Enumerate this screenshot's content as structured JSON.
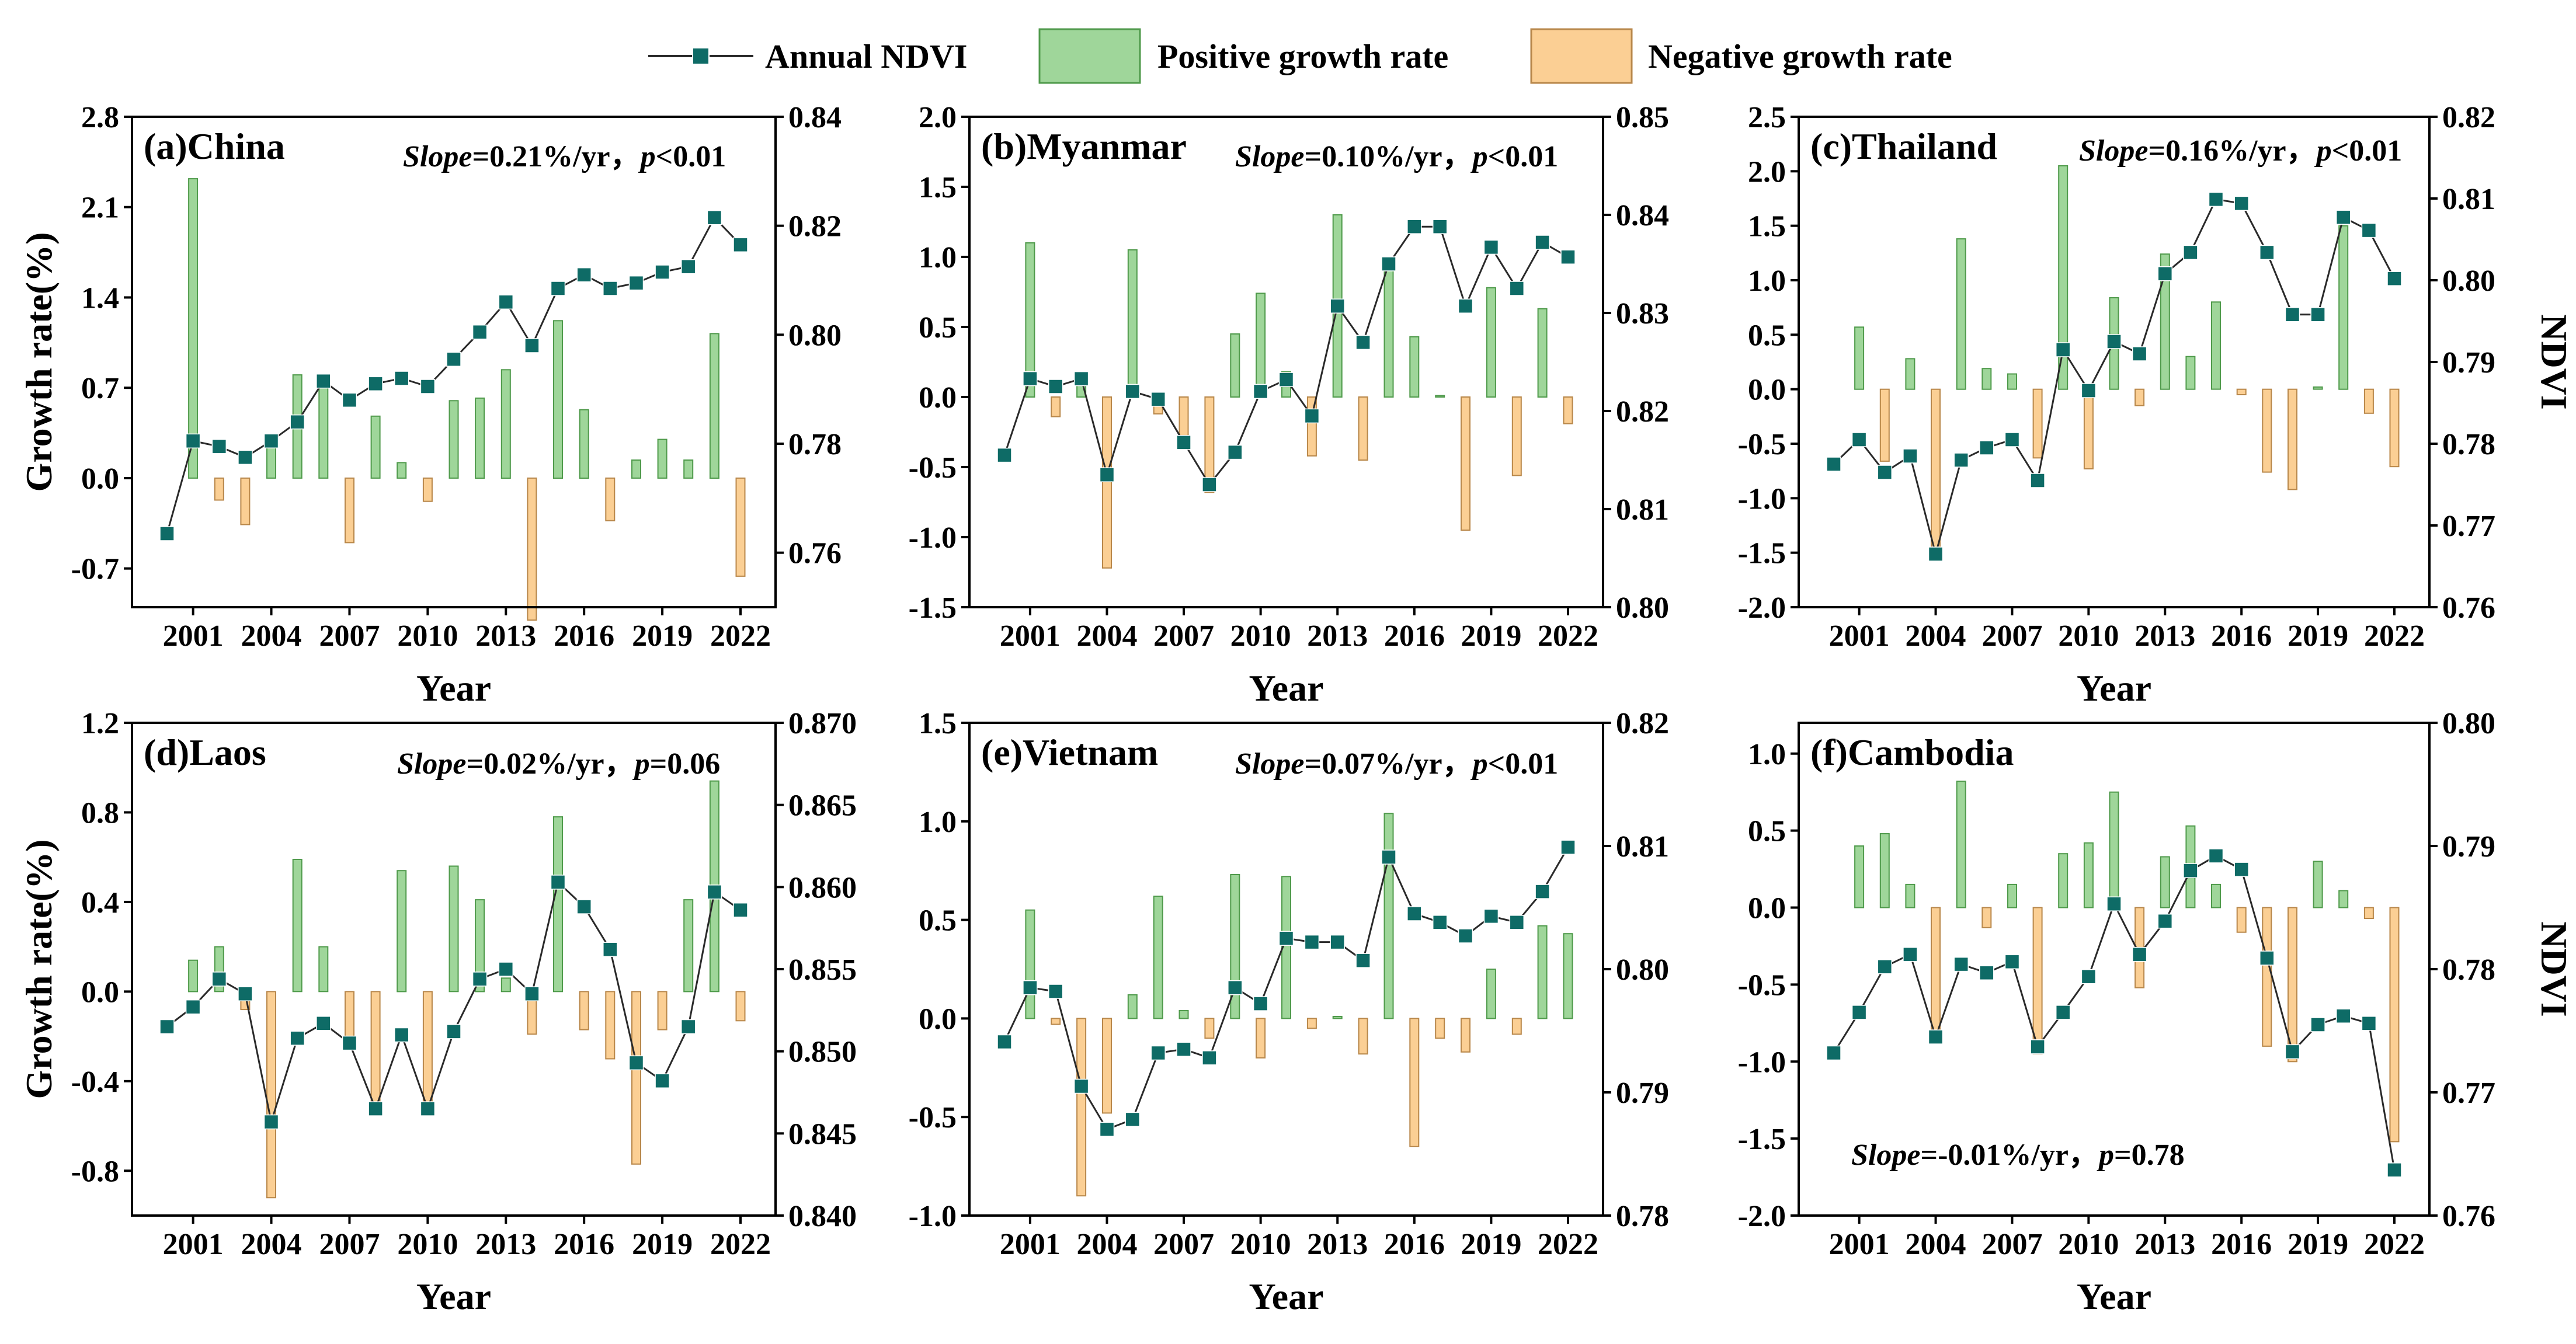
{
  "legend": {
    "ndvi_label": "Annual NDVI",
    "positive_label": "Positive growth rate",
    "negative_label": "Negative growth rate"
  },
  "colors": {
    "positive_fill": "#9fd69a",
    "positive_stroke": "#4f9a4b",
    "negative_fill": "#fbcf94",
    "negative_stroke": "#b8874a",
    "ndvi_marker": "#0e6b66",
    "ndvi_line": "#2a2a2a",
    "axis": "#000000"
  },
  "chart_data": [
    {
      "type": "bar+line",
      "panel": "(a)China",
      "stat_prefix": "Slope",
      "stat_value": "=0.21%/yr，",
      "p_prefix": "p",
      "p_value": "<0.01",
      "xlabel": "Year",
      "ylabel": "Growth rate(%)",
      "y2label": "",
      "x": [
        2000,
        2001,
        2002,
        2003,
        2004,
        2005,
        2006,
        2007,
        2008,
        2009,
        2010,
        2011,
        2012,
        2013,
        2014,
        2015,
        2016,
        2017,
        2018,
        2019,
        2020,
        2021,
        2022
      ],
      "x_ticks": [
        2001,
        2004,
        2007,
        2010,
        2013,
        2016,
        2019,
        2022
      ],
      "ylim": [
        -1.0,
        2.8
      ],
      "yticks": [
        "-0.7",
        "0.0",
        "0.7",
        "1.4",
        "2.1",
        "2.8"
      ],
      "y2lim": [
        0.75,
        0.84
      ],
      "y2ticks": [
        "0.76",
        "0.78",
        "0.80",
        "0.82",
        "0.84"
      ],
      "growth_rate": [
        null,
        2.32,
        -0.17,
        -0.36,
        0.3,
        0.8,
        0.8,
        -0.5,
        0.48,
        0.12,
        -0.18,
        0.6,
        0.62,
        0.84,
        -1.1,
        1.22,
        0.53,
        -0.33,
        0.14,
        0.3,
        0.14,
        1.12,
        -0.76
      ],
      "ndvi": [
        0.7635,
        0.7805,
        0.7795,
        0.7775,
        0.7805,
        0.784,
        0.7915,
        0.788,
        0.791,
        0.792,
        0.7905,
        0.7955,
        0.8005,
        0.806,
        0.798,
        0.8085,
        0.811,
        0.8085,
        0.8095,
        0.8115,
        0.8125,
        0.8215,
        0.8165
      ]
    },
    {
      "type": "bar+line",
      "panel": "(b)Myanmar",
      "stat_prefix": "Slope",
      "stat_value": "=0.10%/yr，",
      "p_prefix": "p",
      "p_value": "<0.01",
      "xlabel": "Year",
      "ylabel": "",
      "y2label": "",
      "x": [
        2000,
        2001,
        2002,
        2003,
        2004,
        2005,
        2006,
        2007,
        2008,
        2009,
        2010,
        2011,
        2012,
        2013,
        2014,
        2015,
        2016,
        2017,
        2018,
        2019,
        2020,
        2021,
        2022
      ],
      "x_ticks": [
        2001,
        2004,
        2007,
        2010,
        2013,
        2016,
        2019,
        2022
      ],
      "ylim": [
        -1.5,
        2.0
      ],
      "yticks": [
        "-1.5",
        "-1.0",
        "-0.5",
        "0.0",
        "0.5",
        "1.0",
        "1.5",
        "2.0"
      ],
      "y2lim": [
        0.8,
        0.85
      ],
      "y2ticks": [
        "0.80",
        "0.81",
        "0.82",
        "0.83",
        "0.84",
        "0.85"
      ],
      "growth_rate": [
        null,
        1.1,
        -0.14,
        0.12,
        -1.22,
        1.05,
        -0.12,
        -0.28,
        -0.68,
        0.45,
        0.74,
        0.18,
        -0.42,
        1.3,
        -0.45,
        0.97,
        0.43,
        0.01,
        -0.95,
        0.78,
        -0.56,
        0.63,
        -0.19
      ],
      "ndvi": [
        0.8155,
        0.8233,
        0.8225,
        0.8233,
        0.8135,
        0.822,
        0.8212,
        0.8168,
        0.8125,
        0.8158,
        0.822,
        0.8232,
        0.8195,
        0.8307,
        0.827,
        0.835,
        0.8388,
        0.8388,
        0.8307,
        0.8367,
        0.8325,
        0.8372,
        0.8357
      ]
    },
    {
      "type": "bar+line",
      "panel": "(c)Thailand",
      "stat_prefix": "Slope",
      "stat_value": "=0.16%/yr，",
      "p_prefix": "p",
      "p_value": "<0.01",
      "xlabel": "Year",
      "ylabel": "",
      "y2label": "NDVI",
      "x": [
        2000,
        2001,
        2002,
        2003,
        2004,
        2005,
        2006,
        2007,
        2008,
        2009,
        2010,
        2011,
        2012,
        2013,
        2014,
        2015,
        2016,
        2017,
        2018,
        2019,
        2020,
        2021,
        2022
      ],
      "x_ticks": [
        2001,
        2004,
        2007,
        2010,
        2013,
        2016,
        2019,
        2022
      ],
      "ylim": [
        -2.0,
        2.5
      ],
      "yticks": [
        "-2.0",
        "-1.5",
        "-1.0",
        "-0.5",
        "0.0",
        "0.5",
        "1.0",
        "1.5",
        "2.0",
        "2.5"
      ],
      "y2lim": [
        0.76,
        0.82
      ],
      "y2ticks": [
        "0.76",
        "0.77",
        "0.78",
        "0.79",
        "0.80",
        "0.81",
        "0.82"
      ],
      "growth_rate": [
        null,
        0.57,
        -0.66,
        0.28,
        -1.52,
        1.38,
        0.19,
        0.14,
        -0.63,
        2.05,
        -0.73,
        0.84,
        -0.15,
        1.24,
        0.3,
        0.8,
        -0.05,
        -0.76,
        -0.92,
        0.02,
        1.5,
        -0.22,
        -0.71
      ],
      "ndvi": [
        0.7775,
        0.7805,
        0.7765,
        0.7785,
        0.7665,
        0.778,
        0.7795,
        0.7805,
        0.7755,
        0.7915,
        0.7865,
        0.7925,
        0.791,
        0.8008,
        0.8034,
        0.8099,
        0.8094,
        0.8034,
        0.7958,
        0.7958,
        0.8077,
        0.8061,
        0.8002
      ]
    },
    {
      "type": "bar+line",
      "panel": "(d)Laos",
      "stat_prefix": "Slope",
      "stat_value": "=0.02%/yr，",
      "p_prefix": "p",
      "p_value": "=0.06",
      "xlabel": "Year",
      "ylabel": "Growth rate(%)",
      "y2label": "",
      "x": [
        2000,
        2001,
        2002,
        2003,
        2004,
        2005,
        2006,
        2007,
        2008,
        2009,
        2010,
        2011,
        2012,
        2013,
        2014,
        2015,
        2016,
        2017,
        2018,
        2019,
        2020,
        2021,
        2022
      ],
      "x_ticks": [
        2001,
        2004,
        2007,
        2010,
        2013,
        2016,
        2019,
        2022
      ],
      "ylim": [
        -1.0,
        1.2
      ],
      "yticks": [
        "-0.8",
        "-0.4",
        "0.0",
        "0.4",
        "0.8",
        "1.2"
      ],
      "y2lim": [
        0.84,
        0.87
      ],
      "y2ticks": [
        "0.840",
        "0.845",
        "0.850",
        "0.855",
        "0.860",
        "0.865",
        "0.870"
      ],
      "growth_rate": [
        null,
        0.14,
        0.2,
        -0.08,
        -0.92,
        0.59,
        0.2,
        -0.22,
        -0.5,
        0.54,
        -0.53,
        0.56,
        0.41,
        0.06,
        -0.19,
        0.78,
        -0.17,
        -0.3,
        -0.77,
        -0.17,
        0.41,
        0.94,
        -0.13
      ],
      "ndvi": [
        0.8515,
        0.8527,
        0.8544,
        0.8535,
        0.8457,
        0.8508,
        0.8517,
        0.8505,
        0.8465,
        0.851,
        0.8465,
        0.8512,
        0.8544,
        0.855,
        0.8535,
        0.8603,
        0.8588,
        0.8562,
        0.8493,
        0.8482,
        0.8515,
        0.8597,
        0.8586
      ]
    },
    {
      "type": "bar+line",
      "panel": "(e)Vietnam",
      "stat_prefix": "Slope",
      "stat_value": "=0.07%/yr，",
      "p_prefix": "p",
      "p_value": "<0.01",
      "xlabel": "Year",
      "ylabel": "",
      "y2label": "",
      "x": [
        2000,
        2001,
        2002,
        2003,
        2004,
        2005,
        2006,
        2007,
        2008,
        2009,
        2010,
        2011,
        2012,
        2013,
        2014,
        2015,
        2016,
        2017,
        2018,
        2019,
        2020,
        2021,
        2022
      ],
      "x_ticks": [
        2001,
        2004,
        2007,
        2010,
        2013,
        2016,
        2019,
        2022
      ],
      "ylim": [
        -1.0,
        1.5
      ],
      "yticks": [
        "-1.0",
        "-0.5",
        "0.0",
        "0.5",
        "1.0",
        "1.5"
      ],
      "y2lim": [
        0.78,
        0.82
      ],
      "y2ticks": [
        "0.78",
        "0.79",
        "0.80",
        "0.81",
        "0.82"
      ],
      "growth_rate": [
        null,
        0.55,
        -0.03,
        -0.9,
        -0.48,
        0.12,
        0.62,
        0.04,
        -0.1,
        0.73,
        -0.2,
        0.72,
        -0.05,
        0.01,
        -0.18,
        1.04,
        -0.65,
        -0.1,
        -0.17,
        0.25,
        -0.08,
        0.47,
        0.43
      ],
      "ndvi": [
        0.7941,
        0.7985,
        0.7982,
        0.7905,
        0.787,
        0.7878,
        0.7932,
        0.7935,
        0.7928,
        0.7985,
        0.7972,
        0.8025,
        0.8022,
        0.8022,
        0.8007,
        0.8091,
        0.8045,
        0.8038,
        0.8027,
        0.8043,
        0.8038,
        0.8063,
        0.8099
      ]
    },
    {
      "type": "bar+line",
      "panel": "(f)Cambodia",
      "stat_prefix": "Slope",
      "stat_value": "=-0.01%/yr，",
      "p_prefix": "p",
      "p_value": "=0.78",
      "xlabel": "Year",
      "ylabel": "",
      "y2label": "NDVI",
      "x": [
        2000,
        2001,
        2002,
        2003,
        2004,
        2005,
        2006,
        2007,
        2008,
        2009,
        2010,
        2011,
        2012,
        2013,
        2014,
        2015,
        2016,
        2017,
        2018,
        2019,
        2020,
        2021,
        2022
      ],
      "x_ticks": [
        2001,
        2004,
        2007,
        2010,
        2013,
        2016,
        2019,
        2022
      ],
      "ylim": [
        -2.0,
        1.2
      ],
      "yticks": [
        "-2.0",
        "-1.5",
        "-1.0",
        "-0.5",
        "0.0",
        "0.5",
        "1.0"
      ],
      "y2lim": [
        0.76,
        0.8
      ],
      "y2ticks": [
        "0.76",
        "0.77",
        "0.78",
        "0.79",
        "0.80"
      ],
      "growth_rate": [
        null,
        0.4,
        0.48,
        0.15,
        -0.88,
        0.82,
        -0.13,
        0.15,
        -0.95,
        0.35,
        0.42,
        0.75,
        -0.52,
        0.33,
        0.53,
        0.15,
        -0.16,
        -0.9,
        -1.0,
        0.3,
        0.11,
        -0.07,
        -1.52
      ],
      "ndvi": [
        0.7732,
        0.7765,
        0.7802,
        0.7812,
        0.7745,
        0.7804,
        0.7797,
        0.7806,
        0.7737,
        0.7765,
        0.7794,
        0.7853,
        0.7812,
        0.7839,
        0.788,
        0.7892,
        0.7881,
        0.7809,
        0.7733,
        0.7755,
        0.7762,
        0.7756,
        0.7637
      ]
    }
  ]
}
